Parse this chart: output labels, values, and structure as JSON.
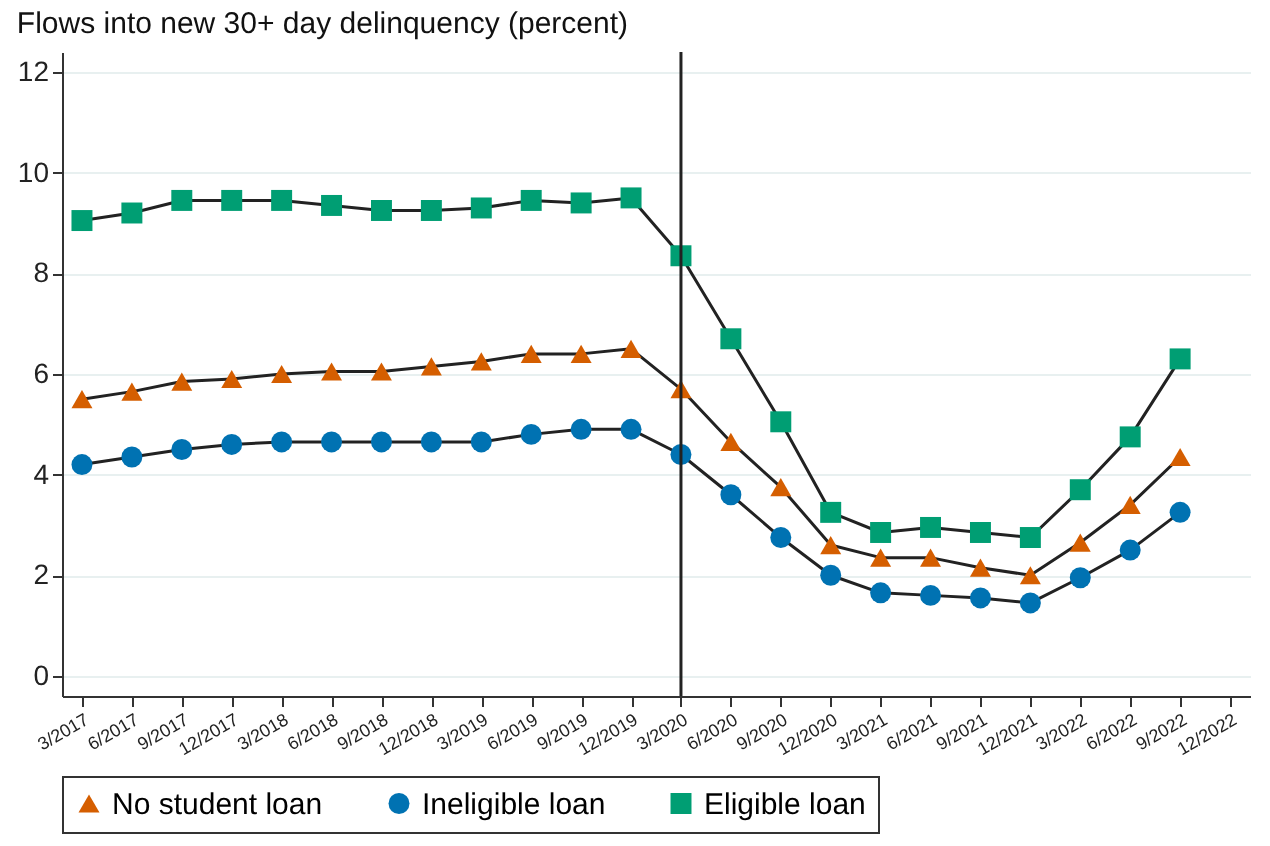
{
  "chart_data": {
    "type": "line",
    "title": "Flows into new 30+ day delinquency (percent)",
    "categories": [
      "3/2017",
      "6/2017",
      "9/2017",
      "12/2017",
      "3/2018",
      "6/2018",
      "9/2018",
      "12/2018",
      "3/2019",
      "6/2019",
      "9/2019",
      "12/2019",
      "3/2020",
      "6/2020",
      "9/2020",
      "12/2020",
      "3/2021",
      "6/2021",
      "9/2021",
      "12/2021",
      "3/2022",
      "6/2022",
      "9/2022",
      "12/2022"
    ],
    "series": [
      {
        "name": "No student loan",
        "color": "#d55e00",
        "marker": "triangle",
        "values": [
          5.5,
          5.65,
          5.85,
          5.9,
          6.0,
          6.05,
          6.05,
          6.15,
          6.25,
          6.4,
          6.4,
          6.5,
          5.7,
          4.65,
          3.75,
          2.6,
          2.35,
          2.35,
          2.15,
          2.0,
          2.65,
          3.4,
          4.35,
          null
        ]
      },
      {
        "name": "Ineligible loan",
        "color": "#0072b2",
        "marker": "circle",
        "values": [
          4.2,
          4.35,
          4.5,
          4.6,
          4.65,
          4.65,
          4.65,
          4.65,
          4.65,
          4.8,
          4.9,
          4.9,
          4.4,
          3.6,
          2.75,
          2.0,
          1.65,
          1.6,
          1.55,
          1.45,
          1.95,
          2.5,
          3.25,
          null
        ]
      },
      {
        "name": "Eligible loan",
        "color": "#009e73",
        "marker": "square",
        "values": [
          9.05,
          9.2,
          9.45,
          9.45,
          9.45,
          9.35,
          9.25,
          9.25,
          9.3,
          9.45,
          9.4,
          9.5,
          8.35,
          6.7,
          5.05,
          3.25,
          2.85,
          2.95,
          2.85,
          2.75,
          3.7,
          4.75,
          6.3,
          null
        ]
      }
    ],
    "ylim": [
      -0.4,
      12.4
    ],
    "yticks": [
      0,
      2,
      4,
      6,
      8,
      10,
      12
    ],
    "grid": "y",
    "legend": "bottom",
    "ref_lines": [
      {
        "axis": "x",
        "value": "3/2020"
      }
    ]
  }
}
